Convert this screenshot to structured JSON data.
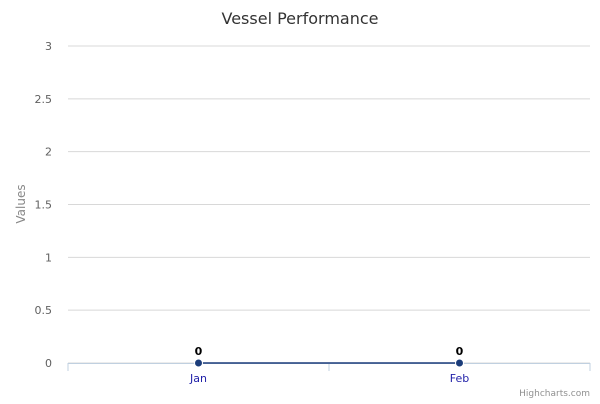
{
  "chart_data": {
    "type": "line",
    "title": "Vessel Performance",
    "ylabel": "Values",
    "xlabel": "",
    "categories": [
      "Jan",
      "Feb"
    ],
    "series": [
      {
        "values": [
          0,
          0
        ],
        "color": "#1b3c7a"
      }
    ],
    "ylim": [
      0,
      3
    ],
    "yticks": [
      "0",
      "0.5",
      "1",
      "1.5",
      "2",
      "2.5",
      "3"
    ],
    "grid": true,
    "legend": "none",
    "data_labels": [
      "0",
      "0"
    ]
  },
  "credits": "Highcharts.com"
}
